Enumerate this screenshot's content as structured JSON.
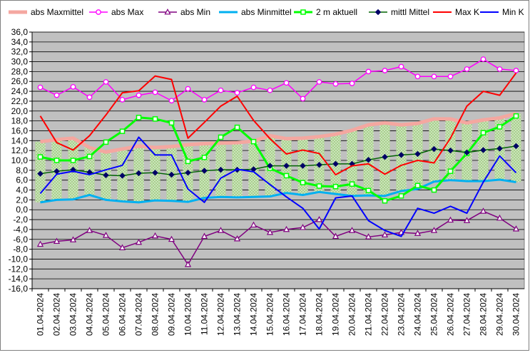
{
  "chart_data": {
    "type": "line",
    "title": "",
    "xlabel": "",
    "ylabel": "",
    "ylim": [
      -16,
      36
    ],
    "ytick_step": 2,
    "grid": true,
    "legend_position": "top",
    "colors": {
      "plot_background": "#c0c0c0",
      "grid": "#000000",
      "band_fill": "#a9d18e",
      "band_dots": "#ffffff"
    },
    "categories": [
      "01.04.2024",
      "02.04.2024",
      "03.04.2024",
      "04.04.2024",
      "05.04.2024",
      "06.04.2024",
      "07.04.2024",
      "08.04.2024",
      "09.04.2024",
      "10.04.2024",
      "11.04.2024",
      "12.04.2024",
      "13.04.2024",
      "14.04.2024",
      "15.04.2024",
      "16.04.2024",
      "17.04.2024",
      "18.04.2024",
      "19.04.2024",
      "20.04.2024",
      "21.04.2024",
      "22.04.2024",
      "23.04.2024",
      "24.04.2024",
      "25.04.2024",
      "26.04.2024",
      "27.04.2024",
      "28.04.2024",
      "29.04.2024",
      "30.04.2024"
    ],
    "band": {
      "lower_series": "abs Minmittel",
      "upper_series": "abs Maxmittel"
    },
    "series": [
      {
        "name": "abs Maxmittel",
        "color": "#f4a7a0",
        "width": 5,
        "marker": "none",
        "values": [
          13.8,
          14.2,
          14.5,
          12.6,
          11.7,
          12.3,
          12.9,
          12.6,
          12.8,
          13.2,
          13.4,
          13.5,
          13.6,
          13.9,
          15.0,
          14.4,
          14.5,
          14.8,
          15.3,
          16.1,
          17.2,
          17.6,
          17.2,
          17.5,
          18.4,
          18.4,
          17.6,
          18.2,
          18.6,
          19.5
        ]
      },
      {
        "name": "abs Max",
        "color": "#ff00ff",
        "width": 1.5,
        "marker": "circle-open",
        "values": [
          24.8,
          23.2,
          24.9,
          22.8,
          25.9,
          22.3,
          23.2,
          23.8,
          22.1,
          24.5,
          22.3,
          24.2,
          23.7,
          24.8,
          24.2,
          25.7,
          22.5,
          25.9,
          25.5,
          25.6,
          28.0,
          28.2,
          29.0,
          27.0,
          27.0,
          27.0,
          28.5,
          30.5,
          28.5,
          28.2
        ]
      },
      {
        "name": "abs Min",
        "color": "#800080",
        "width": 1.5,
        "marker": "triangle-open",
        "values": [
          -7.0,
          -6.4,
          -6.1,
          -4.2,
          -5.2,
          -7.7,
          -6.6,
          -5.3,
          -6.0,
          -11.1,
          -5.4,
          -4.2,
          -5.9,
          -3.1,
          -4.6,
          -4.0,
          -3.6,
          -2.0,
          -5.4,
          -4.2,
          -5.5,
          -5.1,
          -4.6,
          -4.8,
          -4.2,
          -2.1,
          -2.2,
          -0.3,
          -1.7,
          -3.9
        ]
      },
      {
        "name": "abs Minmittel",
        "color": "#00b0f0",
        "width": 3,
        "marker": "none",
        "values": [
          1.5,
          2.0,
          2.1,
          3.0,
          2.0,
          1.7,
          1.5,
          1.9,
          1.8,
          1.6,
          2.4,
          2.6,
          2.5,
          2.6,
          2.7,
          3.4,
          3.0,
          3.6,
          3.2,
          2.8,
          2.9,
          2.8,
          3.8,
          4.2,
          5.7,
          6.0,
          5.8,
          5.8,
          6.1,
          5.6
        ]
      },
      {
        "name": "2 m aktuell",
        "color": "#00ff00",
        "width": 3,
        "marker": "square-open",
        "values": [
          10.7,
          10.0,
          10.0,
          10.8,
          13.7,
          15.9,
          18.7,
          18.4,
          17.6,
          9.8,
          10.6,
          14.7,
          16.7,
          13.8,
          8.4,
          6.9,
          5.5,
          4.8,
          4.7,
          5.2,
          3.9,
          1.8,
          2.8,
          4.9,
          4.0,
          7.8,
          11.4,
          15.6,
          16.8,
          19.0
        ]
      },
      {
        "name": "mittl Mittel",
        "color": "#006400",
        "width": 1.5,
        "marker": "diamond-filled",
        "marker_color": "#000066",
        "values": [
          7.3,
          7.8,
          8.1,
          7.6,
          7.0,
          6.9,
          7.4,
          7.5,
          7.1,
          7.5,
          7.9,
          8.1,
          8.1,
          8.2,
          8.9,
          8.9,
          8.9,
          9.1,
          9.3,
          9.3,
          10.1,
          10.7,
          11.1,
          11.3,
          12.3,
          12.0,
          11.6,
          12.1,
          12.4,
          12.9
        ]
      },
      {
        "name": "Max K",
        "color": "#ff0000",
        "width": 2,
        "marker": "none",
        "values": [
          19.0,
          13.6,
          12.1,
          15.0,
          19.2,
          23.7,
          24.1,
          27.1,
          26.4,
          14.5,
          17.7,
          21.0,
          23.0,
          18.1,
          14.4,
          11.3,
          12.1,
          11.4,
          7.1,
          8.9,
          9.3,
          7.2,
          9.0,
          10.0,
          9.5,
          14.5,
          21.0,
          24.0,
          23.2,
          27.7
        ]
      },
      {
        "name": "Min K",
        "color": "#0000ff",
        "width": 2,
        "marker": "none",
        "values": [
          3.3,
          7.2,
          7.8,
          7.1,
          8.1,
          9.0,
          14.7,
          11.1,
          11.1,
          4.2,
          1.5,
          6.4,
          8.2,
          7.7,
          5.1,
          2.6,
          0.3,
          -3.9,
          2.4,
          2.8,
          -2.2,
          -4.2,
          -5.4,
          0.3,
          -0.7,
          0.7,
          -0.7,
          5.6,
          10.9,
          7.5
        ]
      }
    ]
  }
}
